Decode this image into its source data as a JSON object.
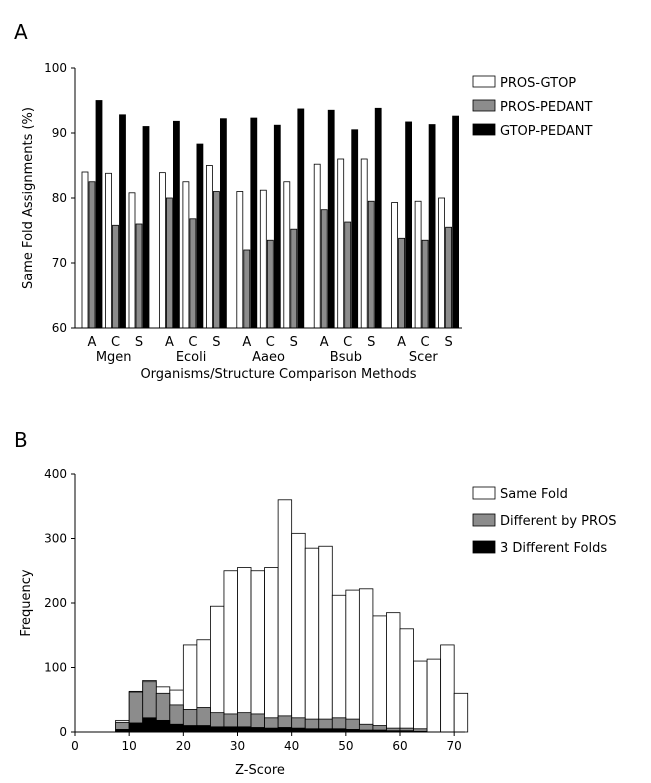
{
  "chart_data": [
    {
      "panel_label": "A",
      "type": "bar",
      "groups": [
        "Mgen",
        "Ecoli",
        "Aaeo",
        "Bsub",
        "Scer"
      ],
      "subcategories": [
        "A",
        "C",
        "S"
      ],
      "xlabel": "Organisms/Structure Comparison Methods",
      "ylabel": "Same Fold Assignments (%)",
      "ylim": [
        60,
        100
      ],
      "yticks": [
        60,
        70,
        80,
        90,
        100
      ],
      "legend_position": "right",
      "series": [
        {
          "name": "PROS-GTOP",
          "color": "#ffffff",
          "values": [
            84.0,
            83.8,
            80.8,
            83.9,
            82.5,
            85.0,
            81.0,
            81.2,
            82.5,
            85.2,
            86.0,
            86.0,
            79.3,
            79.5,
            80.0
          ]
        },
        {
          "name": "PROS-PEDANT",
          "color": "#8c8c8c",
          "values": [
            82.5,
            75.8,
            76.0,
            80.0,
            76.8,
            81.0,
            72.0,
            73.5,
            75.2,
            78.2,
            76.3,
            79.5,
            73.8,
            73.5,
            75.5
          ]
        },
        {
          "name": "GTOP-PEDANT",
          "color": "#000000",
          "values": [
            95.0,
            92.8,
            91.0,
            91.8,
            88.3,
            92.2,
            92.3,
            91.2,
            93.7,
            93.5,
            90.5,
            93.8,
            91.7,
            91.3,
            92.6
          ]
        }
      ]
    },
    {
      "panel_label": "B",
      "type": "bar",
      "stacked": "overlapping",
      "bin_width": 2.5,
      "xlabel": "Z-Score",
      "ylabel": "Frequency",
      "xlim": [
        0,
        72
      ],
      "xticks": [
        0,
        10,
        20,
        30,
        40,
        50,
        60,
        70
      ],
      "ylim": [
        0,
        400
      ],
      "yticks": [
        0,
        100,
        200,
        300,
        400
      ],
      "legend_position": "right",
      "x": [
        7.5,
        10,
        12.5,
        15,
        17.5,
        20,
        22.5,
        25,
        27.5,
        30,
        32.5,
        35,
        37.5,
        40,
        42.5,
        45,
        47.5,
        50,
        52.5,
        55,
        57.5,
        60,
        62.5
      ],
      "series": [
        {
          "name": "Same Fold",
          "color": "#ffffff",
          "values": [
            18,
            63,
            80,
            70,
            65,
            135,
            143,
            195,
            250,
            255,
            250,
            255,
            360,
            308,
            285,
            288,
            212,
            220,
            222,
            180,
            185,
            160,
            110
          ]
        },
        {
          "name": "Different by PROS",
          "color": "#8c8c8c",
          "values": [
            15,
            62,
            78,
            60,
            42,
            35,
            38,
            30,
            28,
            30,
            28,
            22,
            25,
            22,
            20,
            20,
            22,
            20,
            12,
            10,
            6,
            6,
            5
          ]
        },
        {
          "name": "3 Different Folds",
          "color": "#000000",
          "values": [
            4,
            14,
            22,
            18,
            12,
            10,
            10,
            8,
            8,
            8,
            7,
            6,
            7,
            6,
            5,
            5,
            5,
            4,
            3,
            3,
            2,
            2,
            1
          ]
        }
      ],
      "extra_bins": {
        "x": [
          65,
          67.5
        ],
        "same_fold_values": [
          113,
          135
        ]
      },
      "tail_bin": {
        "x": 70,
        "value": 60
      }
    }
  ]
}
